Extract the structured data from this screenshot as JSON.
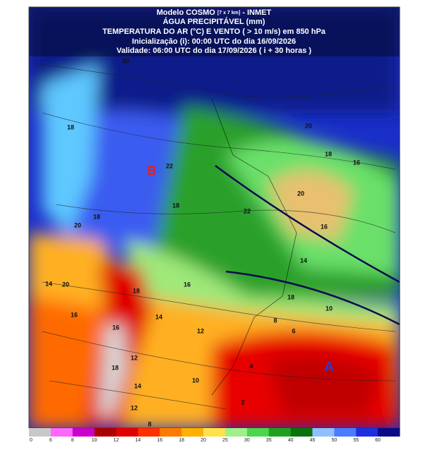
{
  "header": {
    "line1": "Modelo COSMO",
    "line1_note": "[7 x 7 km]",
    "line1_suffix": "- INMET",
    "line2": "ÁGUA PRECIPITÁVEL (mm)",
    "line3": "TEMPERATURA DO AR (°C) E VENTO ( > 10 m/s) em 850 hPa",
    "line4": "Inicialização (i): 00:00 UTC do dia 16/09/2026",
    "line5": "Validade: 06:00 UTC do dia 17/09/2026 ( i + 30 horas )"
  },
  "map": {
    "low_label": "B",
    "high_label": "A",
    "contour_labels": [
      "20",
      "18",
      "22",
      "20",
      "18",
      "16",
      "20",
      "16",
      "18",
      "22",
      "18",
      "20",
      "14",
      "20",
      "16",
      "18",
      "14",
      "16",
      "12",
      "14",
      "18",
      "12",
      "10",
      "8",
      "6",
      "4",
      "2",
      "8",
      "10",
      "12",
      "18",
      "16",
      "14"
    ]
  },
  "colorbar": {
    "labels": [
      "0",
      "6",
      "8",
      "10",
      "12",
      "14",
      "16",
      "18",
      "20",
      "25",
      "30",
      "35",
      "40",
      "45",
      "50",
      "55",
      "60"
    ],
    "colors": [
      "#c8c8c8",
      "#ff66ff",
      "#cc00cc",
      "#aa0000",
      "#e00000",
      "#ff3000",
      "#ff7a00",
      "#ffb000",
      "#ffe24a",
      "#9ff08a",
      "#4cd64c",
      "#1ea21e",
      "#0b730b",
      "#8fc0ff",
      "#4a7cff",
      "#1e2fe0",
      "#0a0a8a"
    ]
  }
}
